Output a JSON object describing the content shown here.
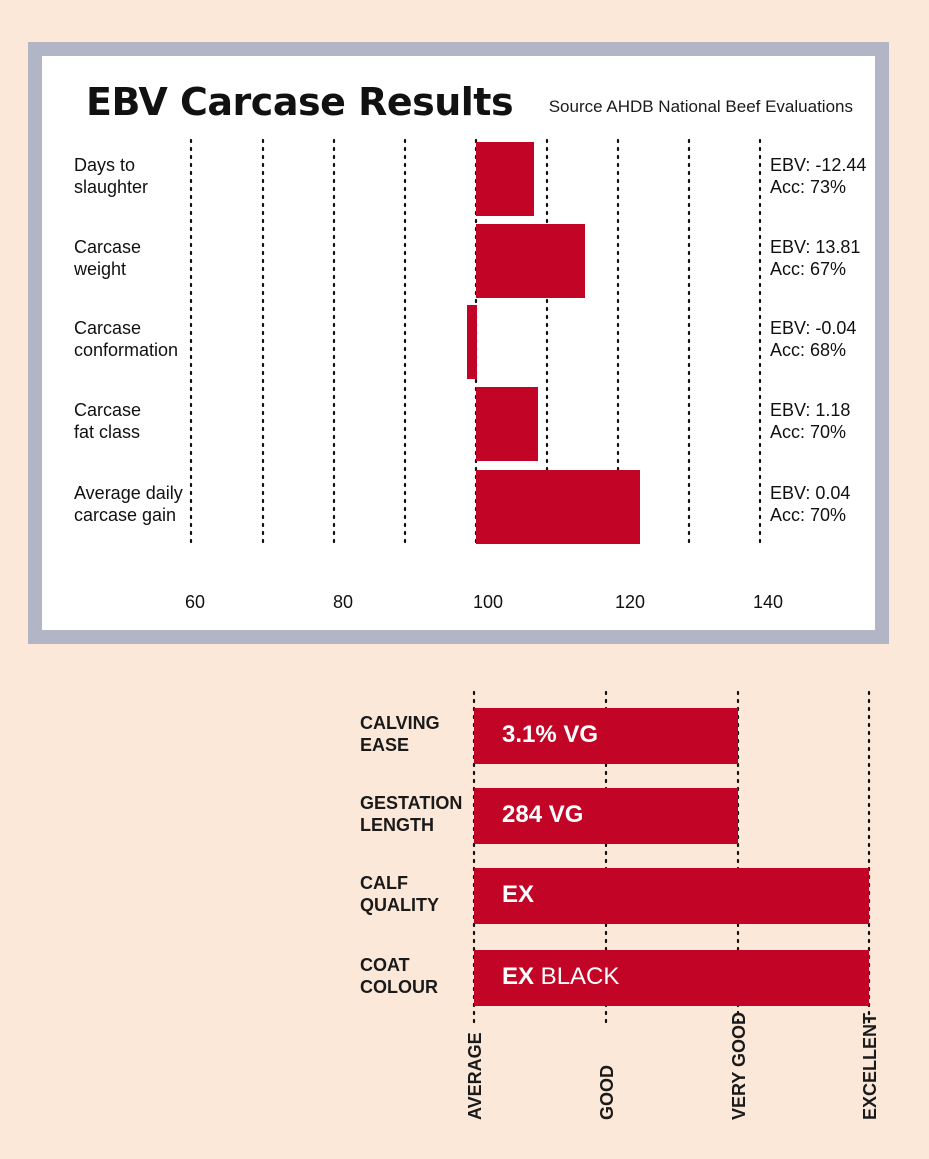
{
  "chart_data": [
    {
      "type": "bar",
      "orientation": "horizontal",
      "title": "EBV Carcase Results",
      "source": "Source AHDB National Beef Evaluations",
      "categories": [
        [
          "Days to",
          "slaughter"
        ],
        [
          "Carcase",
          "weight"
        ],
        [
          "Carcase",
          "conformation"
        ],
        [
          "Carcase",
          "fat class"
        ],
        [
          "Average daily",
          "carcase gain"
        ]
      ],
      "values": [
        108,
        115,
        98,
        109,
        124
      ],
      "baseline": 100,
      "ebv": [
        "EBV: -12.44",
        "EBV: 13.81",
        "EBV: -0.04",
        "EBV: 1.18",
        "EBV: 0.04"
      ],
      "acc": [
        "Acc: 73%",
        "Acc: 67%",
        "Acc: 68%",
        "Acc: 70%",
        "Acc: 70%"
      ],
      "xticks": [
        "60",
        "80",
        "100",
        "120",
        "140"
      ],
      "xlim": [
        60,
        140
      ],
      "grid": true,
      "colors": {
        "bar": "#c20526",
        "frame": "#b2b5c6",
        "background": "#fbe8d9"
      }
    },
    {
      "type": "bar",
      "orientation": "horizontal",
      "categories": [
        [
          "CALVING",
          "EASE"
        ],
        [
          "GESTATION",
          "LENGTH"
        ],
        [
          "CALF",
          "QUALITY"
        ],
        [
          "COAT",
          "COLOUR"
        ]
      ],
      "values": [
        2,
        2,
        3,
        3
      ],
      "bar_labels": [
        {
          "bold": "3.1% VG",
          "plain": ""
        },
        {
          "bold": "284 VG",
          "plain": ""
        },
        {
          "bold": "EX",
          "plain": ""
        },
        {
          "bold": "EX",
          "plain": "BLACK"
        }
      ],
      "levels": [
        "AVERAGE",
        "GOOD",
        "VERY GOOD",
        "EXCELLENT"
      ],
      "grid": true
    }
  ]
}
